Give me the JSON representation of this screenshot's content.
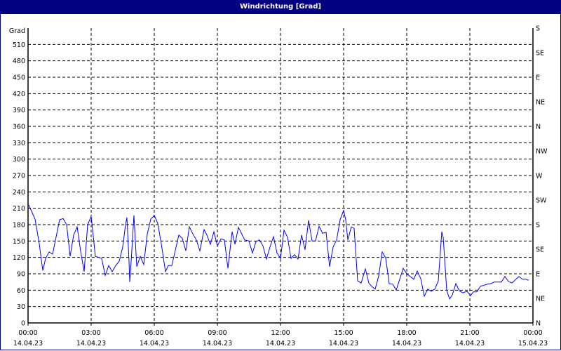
{
  "window": {
    "title": "Windrichtung [Grad]"
  },
  "chart_data": {
    "type": "line",
    "title": "Windrichtung [Grad]",
    "ylabel": "Grad",
    "ylim": [
      0,
      540
    ],
    "yticks": [
      0,
      30,
      60,
      90,
      120,
      150,
      180,
      210,
      240,
      270,
      300,
      330,
      360,
      390,
      420,
      450,
      480,
      510
    ],
    "right_axis_ticks": [
      {
        "value": 0,
        "label": "N"
      },
      {
        "value": 45,
        "label": "NE"
      },
      {
        "value": 90,
        "label": "E"
      },
      {
        "value": 135,
        "label": "SE"
      },
      {
        "value": 180,
        "label": "S"
      },
      {
        "value": 225,
        "label": "SW"
      },
      {
        "value": 270,
        "label": "W"
      },
      {
        "value": 315,
        "label": "NW"
      },
      {
        "value": 360,
        "label": "N"
      },
      {
        "value": 405,
        "label": "NE"
      },
      {
        "value": 450,
        "label": "E"
      },
      {
        "value": 495,
        "label": "SE"
      },
      {
        "value": 540,
        "label": "S"
      }
    ],
    "xticks": [
      {
        "time": "00:00",
        "date": "14.04.23"
      },
      {
        "time": "03:00",
        "date": "14.04.23"
      },
      {
        "time": "06:00",
        "date": "14.04.23"
      },
      {
        "time": "09:00",
        "date": "14.04.23"
      },
      {
        "time": "12:00",
        "date": "14.04.23"
      },
      {
        "time": "15:00",
        "date": "14.04.23"
      },
      {
        "time": "18:00",
        "date": "14.04.23"
      },
      {
        "time": "21:00",
        "date": "14.04.23"
      },
      {
        "time": "00:00",
        "date": "15.04.23"
      }
    ],
    "xlim": [
      "14.04.23 00:00",
      "15.04.23 00:00"
    ],
    "grid": true,
    "line_color": "#0000ff",
    "series": [
      {
        "points": [
          [
            "00:02",
            216
          ],
          [
            "00:20",
            190
          ],
          [
            "00:32",
            145
          ],
          [
            "00:42",
            96
          ],
          [
            "00:50",
            118
          ],
          [
            "01:00",
            130
          ],
          [
            "01:10",
            126
          ],
          [
            "01:30",
            189
          ],
          [
            "01:40",
            191
          ],
          [
            "01:50",
            180
          ],
          [
            "02:00",
            122
          ],
          [
            "02:10",
            161
          ],
          [
            "02:20",
            176
          ],
          [
            "02:30",
            131
          ],
          [
            "02:40",
            94
          ],
          [
            "02:50",
            180
          ],
          [
            "03:00",
            195
          ],
          [
            "03:12",
            122
          ],
          [
            "03:30",
            118
          ],
          [
            "03:40",
            87
          ],
          [
            "03:50",
            105
          ],
          [
            "04:00",
            94
          ],
          [
            "04:10",
            105
          ],
          [
            "04:20",
            113
          ],
          [
            "04:30",
            139
          ],
          [
            "04:38",
            180
          ],
          [
            "04:42",
            193
          ],
          [
            "04:48",
            112
          ],
          [
            "04:50",
            75
          ],
          [
            "04:54",
            112
          ],
          [
            "05:02",
            197
          ],
          [
            "05:10",
            103
          ],
          [
            "05:20",
            122
          ],
          [
            "05:30",
            107
          ],
          [
            "05:40",
            163
          ],
          [
            "05:50",
            190
          ],
          [
            "06:00",
            197
          ],
          [
            "06:10",
            182
          ],
          [
            "06:20",
            145
          ],
          [
            "06:32",
            94
          ],
          [
            "06:40",
            105
          ],
          [
            "06:50",
            105
          ],
          [
            "07:10",
            161
          ],
          [
            "07:20",
            155
          ],
          [
            "07:30",
            132
          ],
          [
            "07:40",
            176
          ],
          [
            "07:50",
            163
          ],
          [
            "08:00",
            152
          ],
          [
            "08:10",
            132
          ],
          [
            "08:22",
            171
          ],
          [
            "08:30",
            161
          ],
          [
            "08:40",
            144
          ],
          [
            "08:50",
            167
          ],
          [
            "09:00",
            141
          ],
          [
            "09:10",
            154
          ],
          [
            "09:20",
            152
          ],
          [
            "09:30",
            100
          ],
          [
            "09:42",
            167
          ],
          [
            "09:50",
            144
          ],
          [
            "10:00",
            175
          ],
          [
            "10:18",
            152
          ],
          [
            "10:30",
            150
          ],
          [
            "10:40",
            128
          ],
          [
            "10:50",
            149
          ],
          [
            "11:00",
            152
          ],
          [
            "11:10",
            141
          ],
          [
            "11:20",
            117
          ],
          [
            "11:30",
            139
          ],
          [
            "11:40",
            158
          ],
          [
            "11:50",
            128
          ],
          [
            "12:00",
            118
          ],
          [
            "12:10",
            170
          ],
          [
            "12:20",
            157
          ],
          [
            "12:30",
            118
          ],
          [
            "12:40",
            125
          ],
          [
            "12:50",
            117
          ],
          [
            "13:00",
            161
          ],
          [
            "13:10",
            134
          ],
          [
            "13:20",
            188
          ],
          [
            "13:30",
            150
          ],
          [
            "13:40",
            150
          ],
          [
            "13:50",
            177
          ],
          [
            "14:00",
            164
          ],
          [
            "14:10",
            166
          ],
          [
            "14:20",
            103
          ],
          [
            "14:30",
            139
          ],
          [
            "14:40",
            152
          ],
          [
            "14:50",
            189
          ],
          [
            "15:00",
            206
          ],
          [
            "15:06",
            189
          ],
          [
            "15:12",
            152
          ],
          [
            "15:22",
            176
          ],
          [
            "15:30",
            173
          ],
          [
            "15:40",
            77
          ],
          [
            "15:50",
            73
          ],
          [
            "16:02",
            99
          ],
          [
            "16:12",
            73
          ],
          [
            "16:20",
            67
          ],
          [
            "16:30",
            62
          ],
          [
            "16:40",
            86
          ],
          [
            "16:50",
            130
          ],
          [
            "17:00",
            119
          ],
          [
            "17:10",
            72
          ],
          [
            "17:20",
            71
          ],
          [
            "17:30",
            60
          ],
          [
            "17:50",
            100
          ],
          [
            "18:00",
            90
          ],
          [
            "18:20",
            80
          ],
          [
            "18:30",
            95
          ],
          [
            "18:40",
            81
          ],
          [
            "18:50",
            49
          ],
          [
            "19:00",
            62
          ],
          [
            "19:10",
            58
          ],
          [
            "19:20",
            62
          ],
          [
            "19:30",
            77
          ],
          [
            "19:40",
            167
          ],
          [
            "19:44",
            157
          ],
          [
            "19:54",
            60
          ],
          [
            "20:02",
            44
          ],
          [
            "20:10",
            51
          ],
          [
            "20:20",
            72
          ],
          [
            "20:30",
            59
          ],
          [
            "20:40",
            55
          ],
          [
            "20:52",
            58
          ],
          [
            "21:02",
            50
          ],
          [
            "21:10",
            57
          ],
          [
            "21:20",
            57
          ],
          [
            "21:30",
            67
          ],
          [
            "21:40",
            69
          ],
          [
            "21:50",
            71
          ],
          [
            "22:00",
            72
          ],
          [
            "22:10",
            75
          ],
          [
            "22:20",
            75
          ],
          [
            "22:30",
            75
          ],
          [
            "22:40",
            85
          ],
          [
            "22:50",
            76
          ],
          [
            "23:00",
            73
          ],
          [
            "23:20",
            85
          ],
          [
            "23:30",
            80
          ],
          [
            "23:40",
            80
          ],
          [
            "23:48",
            78
          ]
        ]
      }
    ]
  }
}
